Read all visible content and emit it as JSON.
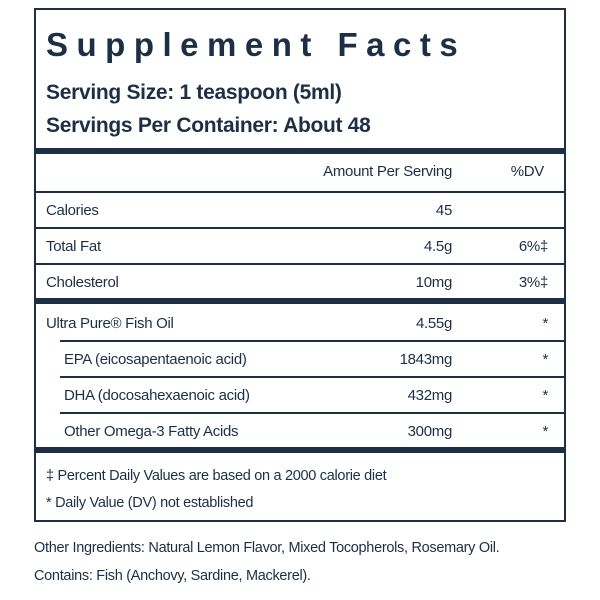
{
  "header": {
    "title": "Supplement Facts",
    "serving_size": "Serving Size: 1 teaspoon (5ml)",
    "servings_per_container": "Servings Per Container: About 48"
  },
  "table": {
    "columns": [
      "Amount Per Serving",
      "%DV"
    ],
    "groups": [
      [
        {
          "name": "Calories",
          "amount": "45",
          "dv": ""
        },
        {
          "name": "Total Fat",
          "amount": "4.5g",
          "dv": "6%‡"
        },
        {
          "name": "Cholesterol",
          "amount": "10mg",
          "dv": "3%‡"
        }
      ],
      [
        {
          "name": "Ultra Pure® Fish Oil",
          "amount": "4.55g",
          "dv": "*"
        },
        {
          "name": "EPA (eicosapentaenoic acid)",
          "amount": "1843mg",
          "dv": "*",
          "indent": true
        },
        {
          "name": "DHA (docosahexaenoic acid)",
          "amount": "432mg",
          "dv": "*",
          "indent": true
        },
        {
          "name": "Other Omega-3 Fatty Acids",
          "amount": "300mg",
          "dv": "*",
          "indent": true
        }
      ]
    ]
  },
  "footnotes": [
    "‡ Percent Daily Values are based on a 2000 calorie diet",
    "* Daily Value (DV) not established"
  ],
  "other_ingredients": "Other Ingredients: Natural Lemon Flavor, Mixed Tocopherols, Rosemary Oil.",
  "contains": "Contains: Fish (Anchovy, Sardine, Mackerel)."
}
